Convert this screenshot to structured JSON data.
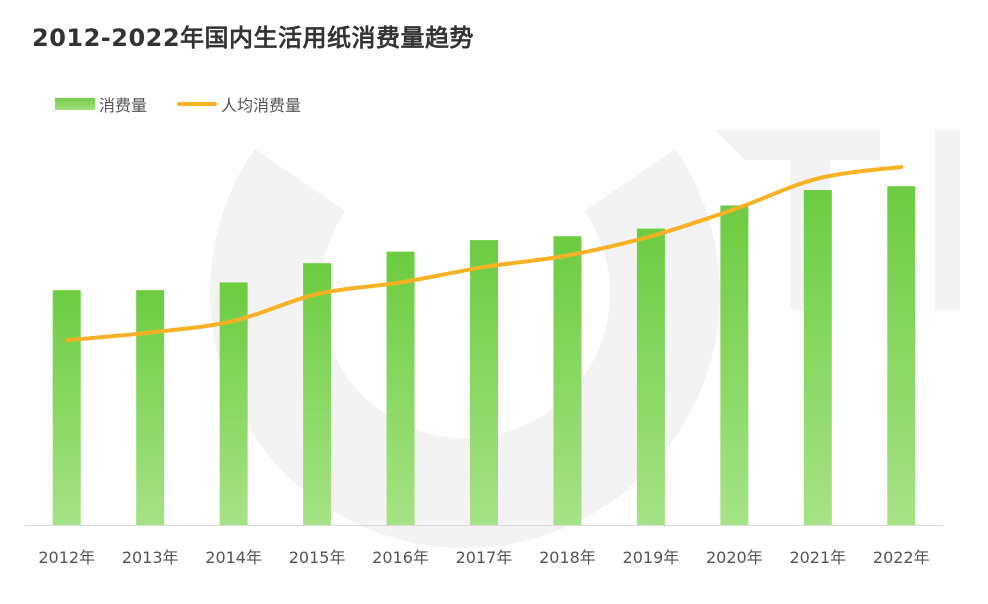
{
  "title": "2012-2022年国内生活用纸消费量趋势",
  "legend": {
    "bar_label": "消费量",
    "line_label": "人均消费量"
  },
  "colors": {
    "bar_top": "#6ccc40",
    "bar_bottom": "#a6e286",
    "line": "#f7b125",
    "axis": "#d9d9d9",
    "tick_text": "#555555",
    "watermark": "#f3f3f3"
  },
  "chart_data": {
    "type": "bar",
    "categories": [
      "2012年",
      "2013年",
      "2014年",
      "2015年",
      "2016年",
      "2017年",
      "2018年",
      "2019年",
      "2020年",
      "2021年",
      "2022年"
    ],
    "ylim": [
      0,
      1
    ],
    "series": [
      {
        "type": "bar",
        "values": [
          0.61,
          0.61,
          0.63,
          0.68,
          0.71,
          0.74,
          0.75,
          0.77,
          0.83,
          0.87,
          0.88
        ]
      },
      {
        "type": "line",
        "values": [
          0.48,
          0.5,
          0.53,
          0.6,
          0.63,
          0.67,
          0.7,
          0.75,
          0.82,
          0.9,
          0.93
        ]
      }
    ],
    "grid": false,
    "legend_position": "top-left"
  }
}
